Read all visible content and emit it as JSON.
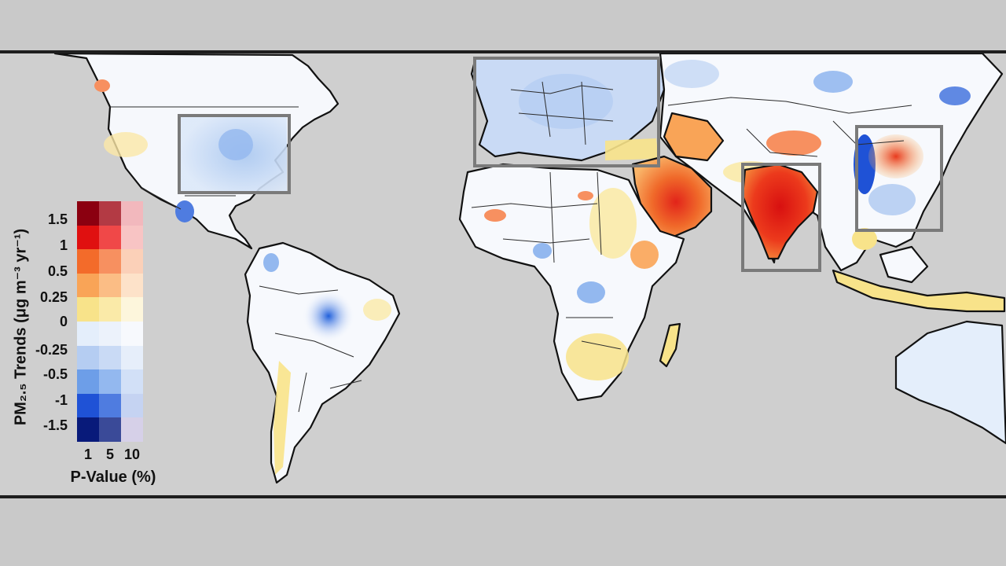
{
  "legend": {
    "title": "PM₂.₅ Trends (μg m⁻³ yr⁻¹)",
    "ticks": [
      "1.5",
      "1",
      "0.5",
      "0.25",
      "0",
      "-0.25",
      "-0.5",
      "-1",
      "-1.5"
    ],
    "pvalue_ticks": [
      "1",
      "5",
      "10"
    ],
    "pvalue_label": "P-Value (%)",
    "colors": [
      [
        "#8b0010",
        "#b33a44",
        "#f2b8bd"
      ],
      [
        "#e01010",
        "#f04848",
        "#f8c4c4"
      ],
      [
        "#f36b2a",
        "#f79060",
        "#fbd0b8"
      ],
      [
        "#f9a457",
        "#fbbd85",
        "#fde2c9"
      ],
      [
        "#f8e38a",
        "#faeaa8",
        "#fdf6dc"
      ],
      [
        "#e4eefb",
        "#ecf2fb",
        "#f7f9fd"
      ],
      [
        "#b5cdf2",
        "#c9daf5",
        "#e6eefa"
      ],
      [
        "#6d9ee8",
        "#93b8ef",
        "#d2e0f7"
      ],
      [
        "#1f52d6",
        "#4f7ce0",
        "#c5d3f2"
      ],
      [
        "#081a7a",
        "#3a4a98",
        "#d6d0e8"
      ]
    ]
  },
  "regions": [
    "eastern-us",
    "europe",
    "india",
    "eastern-china"
  ]
}
